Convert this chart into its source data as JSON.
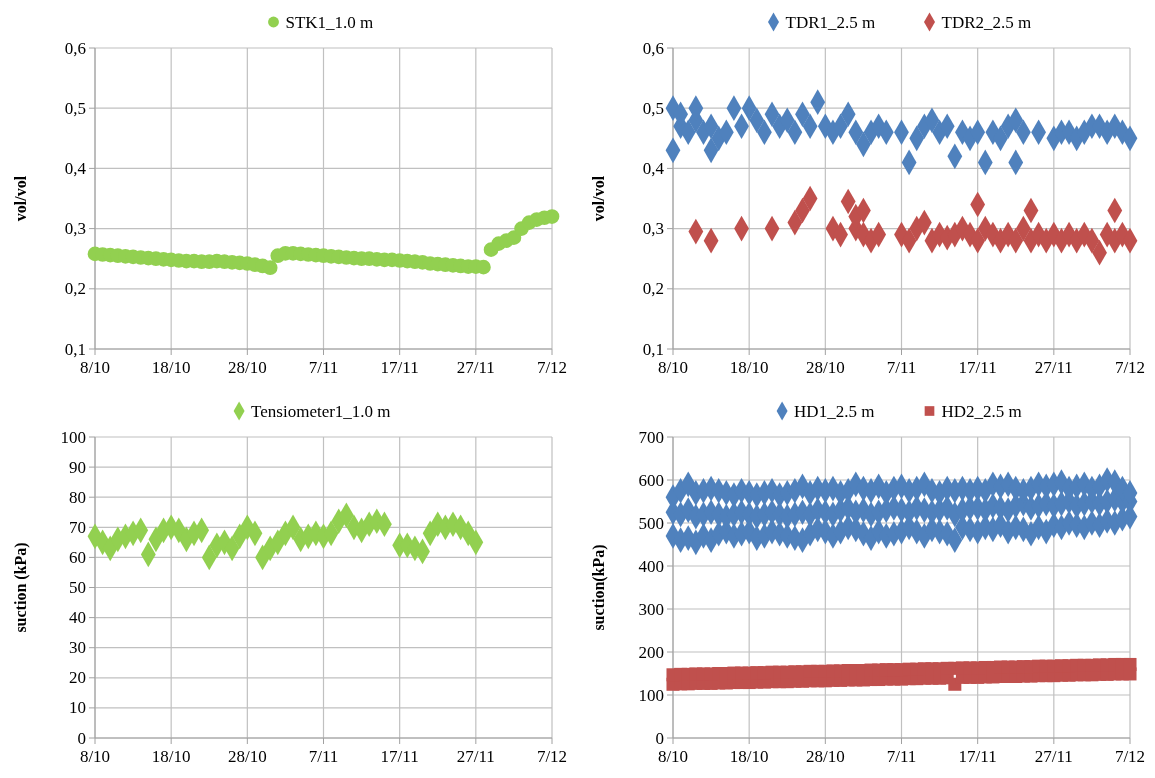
{
  "chart_data": [
    {
      "type": "scatter",
      "ylabel": "vol/vol",
      "xlim": [
        "--10-08",
        "--12-07"
      ],
      "xticks": [
        {
          "value": "--10-08",
          "label": "8/10"
        },
        {
          "value": "--10-18",
          "label": "18/10"
        },
        {
          "value": "--10-28",
          "label": "28/10"
        },
        {
          "value": "--11-07",
          "label": "7/11"
        },
        {
          "value": "--11-17",
          "label": "17/11"
        },
        {
          "value": "--11-27",
          "label": "27/11"
        },
        {
          "value": "--12-07",
          "label": "7/12"
        }
      ],
      "ylim": [
        0.1,
        0.6
      ],
      "yticks": [
        {
          "value": 0.1,
          "label": "0,1"
        },
        {
          "value": 0.2,
          "label": "0,2"
        },
        {
          "value": 0.3,
          "label": "0,3"
        },
        {
          "value": 0.4,
          "label": "0,4"
        },
        {
          "value": 0.5,
          "label": "0,5"
        },
        {
          "value": 0.6,
          "label": "0,6"
        }
      ],
      "grid": true,
      "legend": "top",
      "series": [
        {
          "name": "STK1_1.0 m",
          "color": "#92d050",
          "marker": "circle",
          "x": [
            "--10-08",
            "--10-09",
            "--10-10",
            "--10-11",
            "--10-12",
            "--10-13",
            "--10-14",
            "--10-15",
            "--10-16",
            "--10-17",
            "--10-18",
            "--10-19",
            "--10-20",
            "--10-21",
            "--10-22",
            "--10-23",
            "--10-24",
            "--10-25",
            "--10-26",
            "--10-27",
            "--10-28",
            "--10-29",
            "--10-30",
            "--10-31",
            "--11-01",
            "--11-02",
            "--11-03",
            "--11-04",
            "--11-05",
            "--11-06",
            "--11-07",
            "--11-08",
            "--11-09",
            "--11-10",
            "--11-11",
            "--11-12",
            "--11-13",
            "--11-14",
            "--11-15",
            "--11-16",
            "--11-17",
            "--11-18",
            "--11-19",
            "--11-20",
            "--11-21",
            "--11-22",
            "--11-23",
            "--11-24",
            "--11-25",
            "--11-26",
            "--11-27",
            "--11-28",
            "--11-29",
            "--11-30",
            "--12-01",
            "--12-02",
            "--12-03",
            "--12-04",
            "--12-05",
            "--12-06",
            "--12-07"
          ],
          "values": [
            0.258,
            0.257,
            0.256,
            0.255,
            0.254,
            0.253,
            0.252,
            0.251,
            0.25,
            0.249,
            0.248,
            0.247,
            0.246,
            0.246,
            0.245,
            0.245,
            0.246,
            0.245,
            0.244,
            0.243,
            0.242,
            0.24,
            0.238,
            0.235,
            0.255,
            0.259,
            0.259,
            0.258,
            0.257,
            0.256,
            0.255,
            0.254,
            0.253,
            0.252,
            0.251,
            0.25,
            0.25,
            0.249,
            0.248,
            0.248,
            0.247,
            0.246,
            0.245,
            0.244,
            0.242,
            0.241,
            0.24,
            0.239,
            0.238,
            0.237,
            0.237,
            0.236,
            0.265,
            0.275,
            0.28,
            0.285,
            0.3,
            0.31,
            0.315,
            0.318,
            0.32
          ]
        }
      ]
    },
    {
      "type": "scatter",
      "ylabel": "vol/vol",
      "xlim": [
        "--10-08",
        "--12-07"
      ],
      "xticks": [
        {
          "value": "--10-08",
          "label": "8/10"
        },
        {
          "value": "--10-18",
          "label": "18/10"
        },
        {
          "value": "--10-28",
          "label": "28/10"
        },
        {
          "value": "--11-07",
          "label": "7/11"
        },
        {
          "value": "--11-17",
          "label": "17/11"
        },
        {
          "value": "--11-27",
          "label": "27/11"
        },
        {
          "value": "--12-07",
          "label": "7/12"
        }
      ],
      "ylim": [
        0.1,
        0.6
      ],
      "yticks": [
        {
          "value": 0.1,
          "label": "0,1"
        },
        {
          "value": 0.2,
          "label": "0,2"
        },
        {
          "value": 0.3,
          "label": "0,3"
        },
        {
          "value": 0.4,
          "label": "0,4"
        },
        {
          "value": 0.5,
          "label": "0,5"
        },
        {
          "value": 0.6,
          "label": "0,6"
        }
      ],
      "grid": true,
      "legend": "top",
      "series": [
        {
          "name": "TDR1_2.5 m",
          "color": "#4f81bd",
          "marker": "diamond",
          "x": [
            "--10-08",
            "--10-08",
            "--10-09",
            "--10-09",
            "--10-10",
            "--10-11",
            "--10-11",
            "--10-12",
            "--10-13",
            "--10-13",
            "--10-14",
            "--10-15",
            "--10-16",
            "--10-17",
            "--10-18",
            "--10-19",
            "--10-20",
            "--10-21",
            "--10-22",
            "--10-23",
            "--10-24",
            "--10-25",
            "--10-26",
            "--10-27",
            "--10-28",
            "--10-29",
            "--10-30",
            "--10-31",
            "--11-01",
            "--11-02",
            "--11-03",
            "--11-04",
            "--11-05",
            "--11-07",
            "--11-08",
            "--11-09",
            "--11-10",
            "--11-11",
            "--11-12",
            "--11-13",
            "--11-14",
            "--11-15",
            "--11-16",
            "--11-17",
            "--11-18",
            "--11-19",
            "--11-20",
            "--11-21",
            "--11-22",
            "--11-22",
            "--11-23",
            "--11-25",
            "--11-27",
            "--11-28",
            "--11-29",
            "--11-30",
            "--12-01",
            "--12-02",
            "--12-03",
            "--12-04",
            "--12-05",
            "--12-06",
            "--12-07"
          ],
          "values": [
            0.43,
            0.5,
            0.47,
            0.49,
            0.46,
            0.48,
            0.5,
            0.46,
            0.47,
            0.43,
            0.45,
            0.46,
            0.5,
            0.47,
            0.5,
            0.48,
            0.46,
            0.49,
            0.47,
            0.48,
            0.46,
            0.49,
            0.47,
            0.51,
            0.47,
            0.46,
            0.47,
            0.49,
            0.46,
            0.44,
            0.46,
            0.47,
            0.46,
            0.46,
            0.41,
            0.45,
            0.47,
            0.48,
            0.46,
            0.47,
            0.42,
            0.46,
            0.45,
            0.46,
            0.41,
            0.46,
            0.45,
            0.47,
            0.48,
            0.41,
            0.46,
            0.46,
            0.45,
            0.46,
            0.46,
            0.45,
            0.46,
            0.47,
            0.47,
            0.46,
            0.47,
            0.46,
            0.45
          ]
        },
        {
          "name": "TDR2_2.5 m",
          "color": "#c0504d",
          "marker": "diamond",
          "x": [
            "--10-11",
            "--10-13",
            "--10-17",
            "--10-21",
            "--10-24",
            "--10-25",
            "--10-26",
            "--10-29",
            "--10-30",
            "--10-31",
            "--11-01",
            "--11-01",
            "--11-02",
            "--11-02",
            "--11-03",
            "--11-04",
            "--11-07",
            "--11-08",
            "--11-09",
            "--11-10",
            "--11-11",
            "--11-12",
            "--11-13",
            "--11-14",
            "--11-15",
            "--11-16",
            "--11-17",
            "--11-17",
            "--11-18",
            "--11-19",
            "--11-20",
            "--11-21",
            "--11-22",
            "--11-23",
            "--11-24",
            "--11-24",
            "--11-25",
            "--11-26",
            "--11-27",
            "--11-28",
            "--11-29",
            "--11-30",
            "--12-01",
            "--12-02",
            "--12-03",
            "--12-04",
            "--12-05",
            "--12-05",
            "--12-06",
            "--12-07"
          ],
          "values": [
            0.295,
            0.28,
            0.3,
            0.3,
            0.31,
            0.33,
            0.35,
            0.3,
            0.29,
            0.345,
            0.3,
            0.32,
            0.33,
            0.29,
            0.28,
            0.29,
            0.29,
            0.28,
            0.3,
            0.31,
            0.28,
            0.29,
            0.285,
            0.29,
            0.3,
            0.29,
            0.34,
            0.28,
            0.3,
            0.29,
            0.28,
            0.29,
            0.28,
            0.3,
            0.33,
            0.28,
            0.29,
            0.28,
            0.29,
            0.28,
            0.29,
            0.28,
            0.29,
            0.28,
            0.26,
            0.29,
            0.33,
            0.28,
            0.29,
            0.28
          ]
        }
      ]
    },
    {
      "type": "scatter",
      "ylabel": "suction (kPa)",
      "xlim": [
        "--10-08",
        "--12-07"
      ],
      "xticks": [
        {
          "value": "--10-08",
          "label": "8/10"
        },
        {
          "value": "--10-18",
          "label": "18/10"
        },
        {
          "value": "--10-28",
          "label": "28/10"
        },
        {
          "value": "--11-07",
          "label": "7/11"
        },
        {
          "value": "--11-17",
          "label": "17/11"
        },
        {
          "value": "--11-27",
          "label": "27/11"
        },
        {
          "value": "--12-07",
          "label": "7/12"
        }
      ],
      "ylim": [
        0,
        100
      ],
      "yticks": [
        0,
        10,
        20,
        30,
        40,
        50,
        60,
        70,
        80,
        90,
        100
      ],
      "grid": true,
      "legend": "top",
      "series": [
        {
          "name": "Tensiometer1_1.0 m",
          "color": "#92d050",
          "marker": "diamond",
          "x": [
            "--10-08",
            "--10-09",
            "--10-10",
            "--10-11",
            "--10-12",
            "--10-13",
            "--10-14",
            "--10-15",
            "--10-16",
            "--10-17",
            "--10-18",
            "--10-19",
            "--10-20",
            "--10-21",
            "--10-22",
            "--10-23",
            "--10-24",
            "--10-25",
            "--10-26",
            "--10-27",
            "--10-28",
            "--10-29",
            "--10-30",
            "--10-31",
            "--11-01",
            "--11-02",
            "--11-03",
            "--11-04",
            "--11-05",
            "--11-06",
            "--11-07",
            "--11-08",
            "--11-09",
            "--11-10",
            "--11-11",
            "--11-12",
            "--11-13",
            "--11-14",
            "--11-15",
            "--11-17",
            "--11-18",
            "--11-19",
            "--11-20",
            "--11-21",
            "--11-22",
            "--11-23",
            "--11-24",
            "--11-25",
            "--11-26",
            "--11-27"
          ],
          "values": [
            67,
            65,
            63,
            66,
            67,
            68,
            69,
            61,
            66,
            69,
            70,
            69,
            66,
            68,
            69,
            60,
            64,
            65,
            63,
            67,
            70,
            68,
            60,
            63,
            65,
            68,
            70,
            66,
            67,
            68,
            67,
            68,
            72,
            74,
            70,
            69,
            71,
            72,
            71,
            64,
            64,
            63,
            62,
            68,
            71,
            70,
            71,
            70,
            68,
            65
          ]
        }
      ]
    },
    {
      "type": "scatter",
      "ylabel": "suction(kPa)",
      "xlim": [
        "--10-08",
        "--12-07"
      ],
      "xticks": [
        {
          "value": "--10-08",
          "label": "8/10"
        },
        {
          "value": "--10-18",
          "label": "18/10"
        },
        {
          "value": "--10-28",
          "label": "28/10"
        },
        {
          "value": "--11-07",
          "label": "7/11"
        },
        {
          "value": "--11-17",
          "label": "17/11"
        },
        {
          "value": "--11-27",
          "label": "27/11"
        },
        {
          "value": "--12-07",
          "label": "7/12"
        }
      ],
      "ylim": [
        0,
        700
      ],
      "yticks": [
        0,
        100,
        200,
        300,
        400,
        500,
        600,
        700
      ],
      "grid": true,
      "legend": "top",
      "series": [
        {
          "name": "HD1_2.5 m",
          "color": "#4f81bd",
          "marker": "diamond",
          "x": [
            "--10-08",
            "--10-09",
            "--10-10",
            "--10-11",
            "--10-12",
            "--10-13",
            "--10-14",
            "--10-15",
            "--10-16",
            "--10-17",
            "--10-18",
            "--10-19",
            "--10-20",
            "--10-21",
            "--10-22",
            "--10-23",
            "--10-24",
            "--10-25",
            "--10-26",
            "--10-27",
            "--10-28",
            "--10-29",
            "--10-30",
            "--10-31",
            "--11-01",
            "--11-02",
            "--11-03",
            "--11-04",
            "--11-05",
            "--11-06",
            "--11-07",
            "--11-08",
            "--11-09",
            "--11-10",
            "--11-11",
            "--11-12",
            "--11-13",
            "--11-14",
            "--11-15",
            "--11-16",
            "--11-17",
            "--11-18",
            "--11-19",
            "--11-20",
            "--11-21",
            "--11-22",
            "--11-23",
            "--11-24",
            "--11-25",
            "--11-26",
            "--11-27",
            "--11-28",
            "--11-29",
            "--11-30",
            "--12-01",
            "--12-02",
            "--12-03",
            "--12-04",
            "--12-05",
            "--12-06",
            "--12-07",
            "--10-08",
            "--10-09",
            "--10-10",
            "--10-11",
            "--10-12",
            "--10-13",
            "--10-14",
            "--10-15",
            "--10-16",
            "--10-17",
            "--10-18",
            "--10-19",
            "--10-20",
            "--10-21",
            "--10-22",
            "--10-23",
            "--10-24",
            "--10-25",
            "--10-26",
            "--10-27",
            "--10-28",
            "--10-29",
            "--10-30",
            "--10-31",
            "--11-01",
            "--11-02",
            "--11-03",
            "--11-04",
            "--11-05",
            "--11-06",
            "--11-07",
            "--11-08",
            "--11-09",
            "--11-10",
            "--11-11",
            "--11-12",
            "--11-13",
            "--11-14",
            "--11-15",
            "--11-16",
            "--11-17",
            "--11-18",
            "--11-19",
            "--11-20",
            "--11-21",
            "--11-22",
            "--11-23",
            "--11-24",
            "--11-25",
            "--11-26",
            "--11-27",
            "--11-28",
            "--11-29",
            "--11-30",
            "--12-01",
            "--12-02",
            "--12-03",
            "--12-04",
            "--12-05",
            "--12-06",
            "--12-07",
            "--10-08",
            "--10-09",
            "--10-10",
            "--10-11",
            "--10-12",
            "--10-13",
            "--10-14",
            "--10-15",
            "--10-16",
            "--10-17",
            "--10-18",
            "--10-19",
            "--10-20",
            "--10-21",
            "--10-22",
            "--10-23",
            "--10-24",
            "--10-25",
            "--10-26",
            "--10-27",
            "--10-28",
            "--10-29",
            "--10-30",
            "--10-31",
            "--11-01",
            "--11-02",
            "--11-03",
            "--11-04",
            "--11-05",
            "--11-06",
            "--11-07",
            "--11-08",
            "--11-09",
            "--11-10",
            "--11-11",
            "--11-12",
            "--11-13",
            "--11-14",
            "--11-15",
            "--11-16",
            "--11-17",
            "--11-18",
            "--11-19",
            "--11-20",
            "--11-21",
            "--11-22",
            "--11-23",
            "--11-24",
            "--11-25",
            "--11-26",
            "--11-27",
            "--11-28",
            "--11-29",
            "--11-30",
            "--12-01",
            "--12-02",
            "--12-03",
            "--12-04",
            "--12-05",
            "--12-06",
            "--12-07"
          ],
          "values": [
            470,
            460,
            465,
            455,
            470,
            460,
            475,
            480,
            470,
            475,
            480,
            465,
            470,
            480,
            475,
            470,
            465,
            460,
            475,
            485,
            480,
            470,
            480,
            490,
            485,
            475,
            465,
            480,
            470,
            475,
            480,
            490,
            480,
            470,
            485,
            480,
            475,
            460,
            490,
            485,
            480,
            490,
            485,
            495,
            480,
            490,
            485,
            475,
            490,
            480,
            495,
            490,
            500,
            495,
            490,
            500,
            495,
            505,
            500,
            510,
            515,
            525,
            520,
            530,
            515,
            520,
            525,
            520,
            515,
            520,
            525,
            520,
            515,
            520,
            525,
            520,
            515,
            520,
            525,
            520,
            530,
            525,
            520,
            530,
            535,
            525,
            530,
            520,
            525,
            530,
            535,
            530,
            525,
            535,
            530,
            525,
            530,
            535,
            520,
            530,
            535,
            535,
            530,
            540,
            535,
            530,
            540,
            545,
            535,
            540,
            545,
            540,
            545,
            550,
            540,
            545,
            550,
            545,
            550,
            555,
            550,
            550,
            560,
            575,
            590,
            570,
            575,
            580,
            575,
            570,
            565,
            575,
            570,
            565,
            570,
            575,
            565,
            570,
            575,
            585,
            570,
            580,
            575,
            580,
            570,
            575,
            590,
            580,
            575,
            585,
            570,
            580,
            585,
            575,
            580,
            590,
            575,
            570,
            580,
            575,
            580,
            575,
            580,
            575,
            590,
            585,
            590,
            580,
            575,
            580,
            590,
            585,
            590,
            595,
            580,
            585,
            590,
            580,
            585,
            600,
            595,
            580,
            570
          ]
        },
        {
          "name": "HD2_2.5 m",
          "color": "#c0504d",
          "marker": "square",
          "x": [
            "--10-08",
            "--10-09",
            "--10-10",
            "--10-11",
            "--10-12",
            "--10-13",
            "--10-14",
            "--10-15",
            "--10-16",
            "--10-17",
            "--10-18",
            "--10-19",
            "--10-20",
            "--10-21",
            "--10-22",
            "--10-23",
            "--10-24",
            "--10-25",
            "--10-26",
            "--10-27",
            "--10-28",
            "--10-29",
            "--10-30",
            "--10-31",
            "--11-01",
            "--11-02",
            "--11-03",
            "--11-04",
            "--11-05",
            "--11-06",
            "--11-07",
            "--11-08",
            "--11-09",
            "--11-10",
            "--11-11",
            "--11-12",
            "--11-13",
            "--11-14",
            "--11-15",
            "--11-16",
            "--11-17",
            "--11-18",
            "--11-19",
            "--11-20",
            "--11-21",
            "--11-22",
            "--11-23",
            "--11-24",
            "--11-25",
            "--11-26",
            "--11-27",
            "--11-28",
            "--11-29",
            "--11-30",
            "--12-01",
            "--12-02",
            "--12-03",
            "--12-04",
            "--12-05",
            "--12-06",
            "--12-07",
            "--10-08",
            "--10-09",
            "--10-10",
            "--10-11",
            "--10-12",
            "--10-13",
            "--10-14",
            "--10-15",
            "--10-16",
            "--10-17",
            "--10-18",
            "--10-19",
            "--10-20",
            "--10-21",
            "--10-22",
            "--10-23",
            "--10-24",
            "--10-25",
            "--10-26",
            "--10-27",
            "--10-28",
            "--10-29",
            "--10-30",
            "--10-31",
            "--11-01",
            "--11-02",
            "--11-03",
            "--11-04",
            "--11-05",
            "--11-06",
            "--11-07",
            "--11-08",
            "--11-09",
            "--11-10",
            "--11-11",
            "--11-12",
            "--11-13",
            "--11-14",
            "--11-15",
            "--11-16",
            "--11-17",
            "--11-18",
            "--11-19",
            "--11-20",
            "--11-21",
            "--11-22",
            "--11-23",
            "--11-24",
            "--11-25",
            "--11-26",
            "--11-27",
            "--11-28",
            "--11-29",
            "--11-30",
            "--12-01",
            "--12-02",
            "--12-03",
            "--12-04",
            "--12-05",
            "--12-06",
            "--12-07"
          ],
          "values": [
            125,
            126,
            126,
            127,
            127,
            127,
            128,
            128,
            129,
            129,
            129,
            130,
            130,
            131,
            131,
            131,
            132,
            132,
            133,
            133,
            133,
            134,
            134,
            135,
            135,
            135,
            136,
            136,
            137,
            137,
            137,
            138,
            138,
            139,
            139,
            139,
            140,
            125,
            141,
            141,
            141,
            142,
            142,
            143,
            143,
            143,
            144,
            144,
            145,
            145,
            145,
            146,
            146,
            147,
            147,
            147,
            148,
            148,
            149,
            149,
            149,
            147,
            148,
            148,
            149,
            149,
            149,
            150,
            150,
            151,
            151,
            151,
            152,
            152,
            153,
            153,
            153,
            154,
            154,
            155,
            155,
            155,
            156,
            156,
            157,
            157,
            157,
            158,
            158,
            159,
            159,
            159,
            160,
            160,
            161,
            161,
            161,
            162,
            162,
            163,
            163,
            163,
            164,
            164,
            165,
            165,
            165,
            166,
            166,
            167,
            167,
            167,
            168,
            168,
            169,
            169,
            169,
            170,
            170,
            171,
            171,
            171
          ]
        }
      ]
    }
  ]
}
